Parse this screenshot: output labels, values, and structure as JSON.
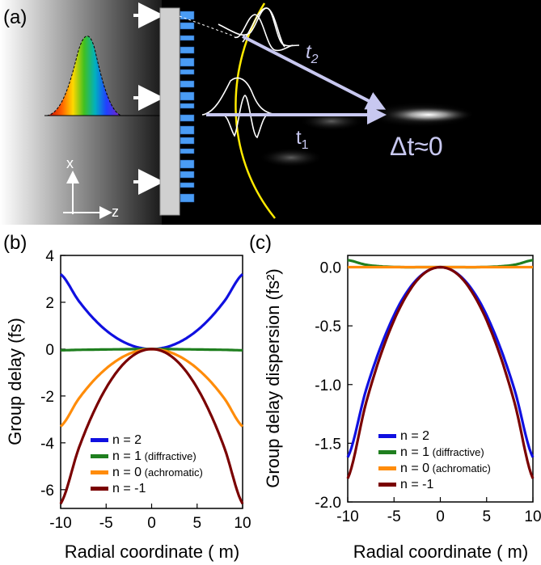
{
  "panels": {
    "a": {
      "label": "(a)",
      "t1_label": "t",
      "t1_sub": "1",
      "t2_label": "t",
      "t2_sub": "2",
      "delta_label": "Δt≈0",
      "axis_x": "x",
      "axis_z": "z"
    },
    "b": {
      "label": "(b)"
    },
    "c": {
      "label": "(c)"
    }
  },
  "legend": [
    {
      "n": "n = 2",
      "note": "",
      "color": "#1010e0"
    },
    {
      "n": "n = 1",
      "note": "(diffractive)",
      "color": "#1f7f1f"
    },
    {
      "n": "n = 0",
      "note": "(achromatic)",
      "color": "#ff8c0a"
    },
    {
      "n": "n = -1",
      "note": "",
      "color": "#7a0000"
    }
  ],
  "chart_data": [
    {
      "panel": "b",
      "type": "line",
      "xlabel": "Radial coordinate ( m)",
      "ylabel": "Group delay (fs)",
      "xlim": [
        -10,
        10
      ],
      "ylim": [
        -6.8,
        4
      ],
      "xticks": [
        -10,
        -5,
        0,
        5,
        10
      ],
      "yticks": [
        4,
        2,
        0,
        -2,
        -4,
        -6
      ],
      "x": [
        -10,
        -8,
        -6,
        -4,
        -2,
        0,
        2,
        4,
        6,
        8,
        10
      ],
      "series": [
        {
          "name": "n = 2",
          "color": "#1010e0",
          "values": [
            3.2,
            2.05,
            1.15,
            0.51,
            0.13,
            0,
            0.13,
            0.51,
            1.15,
            2.05,
            3.2
          ]
        },
        {
          "name": "n = 1 (diffractive)",
          "color": "#1f7f1f",
          "values": [
            -0.05,
            -0.03,
            -0.02,
            -0.01,
            0,
            0,
            0,
            -0.01,
            -0.02,
            -0.03,
            -0.05
          ]
        },
        {
          "name": "n = 0 (achromatic)",
          "color": "#ff8c0a",
          "values": [
            -3.3,
            -2.11,
            -1.19,
            -0.53,
            -0.13,
            0,
            -0.13,
            -0.53,
            -1.19,
            -2.11,
            -3.3
          ]
        },
        {
          "name": "n = -1",
          "color": "#7a0000",
          "values": [
            -6.6,
            -4.22,
            -2.38,
            -1.06,
            -0.26,
            0,
            -0.26,
            -1.06,
            -2.38,
            -4.22,
            -6.6
          ]
        }
      ]
    },
    {
      "panel": "c",
      "type": "line",
      "xlabel": "Radial coordinate ( m)",
      "ylabel": "Group delay dispersion (fs²)",
      "xlim": [
        -10,
        10
      ],
      "ylim": [
        -2.0,
        0.1
      ],
      "xticks": [
        -10,
        -5,
        0,
        5,
        10
      ],
      "yticks": [
        "0.0",
        "-0.5",
        "-1.0",
        "-1.5",
        "-2.0"
      ],
      "x": [
        -10,
        -8,
        -6,
        -4,
        -2,
        0,
        2,
        4,
        6,
        8,
        10
      ],
      "series": [
        {
          "name": "n = 2",
          "color": "#1010e0",
          "values": [
            -1.62,
            -1.04,
            -0.59,
            -0.26,
            -0.065,
            0,
            -0.065,
            -0.26,
            -0.59,
            -1.04,
            -1.62
          ]
        },
        {
          "name": "n = 1 (diffractive)",
          "color": "#1f7f1f",
          "values": [
            0.06,
            0.02,
            0.005,
            0.0,
            0.0,
            0,
            0.0,
            0.0,
            0.005,
            0.02,
            0.06
          ]
        },
        {
          "name": "n = 0 (achromatic)",
          "color": "#ff8c0a",
          "values": [
            0,
            0,
            0,
            0,
            0,
            0,
            0,
            0,
            0,
            0,
            0
          ]
        },
        {
          "name": "n = -1",
          "color": "#7a0000",
          "values": [
            -1.8,
            -1.15,
            -0.65,
            -0.29,
            -0.07,
            0,
            -0.07,
            -0.29,
            -0.65,
            -1.15,
            -1.8
          ]
        }
      ]
    }
  ]
}
